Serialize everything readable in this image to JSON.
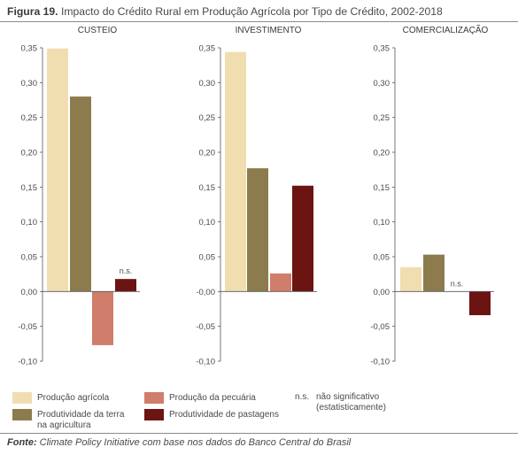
{
  "figure": {
    "label": "Figura 19.",
    "title": "Impacto do Crédito Rural em Produção Agrícola por Tipo de Crédito, 2002-2018"
  },
  "source": {
    "lead": "Fonte:",
    "text": "Climate Policy Initiative com base nos dados do Banco Central do Brasil"
  },
  "chart_data": [
    {
      "type": "bar",
      "title": "CUSTEIO",
      "categories": [
        "Produção agrícola",
        "Produtividade da terra na agricultura",
        "Produção da pecuária",
        "Produtividade de pastagens"
      ],
      "values": [
        0.349,
        0.28,
        -0.077,
        0.018
      ],
      "annotations": [
        {
          "category": "Produtividade de pastagens",
          "text": "n.s."
        }
      ],
      "ylim": [
        -0.1,
        0.35
      ],
      "yticks": [
        "0,35",
        "0,30",
        "0,25",
        "0,20",
        "0,15",
        "0,10",
        "0,05",
        "0,00",
        "-0,05",
        "-0,10"
      ],
      "grid": false
    },
    {
      "type": "bar",
      "title": "INVESTIMENTO",
      "categories": [
        "Produção agrícola",
        "Produtividade da terra na agricultura",
        "Produção da pecuária",
        "Produtividade de pastagens"
      ],
      "values": [
        0.344,
        0.177,
        0.026,
        0.152
      ],
      "annotations": [],
      "ylim": [
        -0.1,
        0.35
      ],
      "yticks": [
        "0,35",
        "0,30",
        "0,25",
        "0,20",
        "0,15",
        "0,10",
        "0,05",
        "-0,00",
        "-0,05",
        "-0,10"
      ],
      "grid": false
    },
    {
      "type": "bar",
      "title": "COMERCIALIZAÇÃO",
      "categories": [
        "Produção agrícola",
        "Produtividade da terra na agricultura",
        "Produção da pecuária",
        "Produtividade de pastagens"
      ],
      "values": [
        0.035,
        0.053,
        0,
        -0.034
      ],
      "annotations": [
        {
          "category": "Produção da pecuária",
          "text": "n.s."
        }
      ],
      "ylim": [
        -0.1,
        0.35
      ],
      "yticks": [
        "0,35",
        "0,30",
        "0,25",
        "0,20",
        "0,15",
        "0,10",
        "0,05",
        "0,00",
        "-0,05",
        "-0,10"
      ],
      "grid": false
    }
  ],
  "colors": {
    "Produção agrícola": "#f0deb1",
    "Produtividade da terra na agricultura": "#8c7c4d",
    "Produção da pecuária": "#d07d6b",
    "Produtividade de pastagens": "#6b1412"
  },
  "legend": [
    {
      "label": "Produção agrícola",
      "color": "#f0deb1"
    },
    {
      "label": "Produtividade da terra na agricultura",
      "color": "#8c7c4d"
    },
    {
      "label": "Produção da pecuária",
      "color": "#d07d6b"
    },
    {
      "label": "Produtividade de pastagens",
      "color": "#6b1412"
    }
  ],
  "legend_note": {
    "symbol": "n.s.",
    "text": "não significativo (estatisticamente)"
  }
}
